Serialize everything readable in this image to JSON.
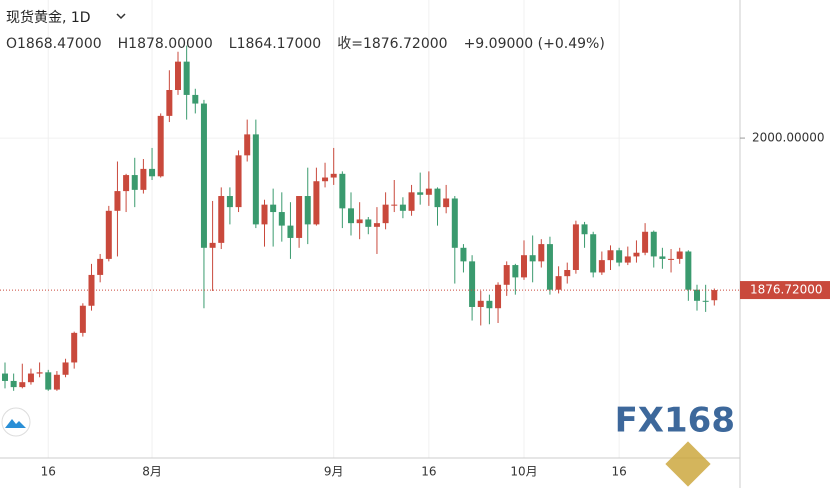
{
  "chart_data": {
    "type": "candlestick",
    "title": "现货黄金, 1D",
    "ohlc_legend": [
      "O1868.47000",
      "H1878.00000",
      "L1864.17000",
      "收=1876.72000",
      "+9.09000 (+0.49%)"
    ],
    "watermark": "FX168",
    "up_color": "#c9493c",
    "down_color": "#3a9a6e",
    "ylim": [
      1740.5,
      2112
    ],
    "yticks": [
      {
        "value": 2000,
        "label": "2000.00000"
      }
    ],
    "last_price": {
      "value": 1876.72,
      "label": "1876.72000"
    },
    "grid": true,
    "categories": [
      null,
      null,
      null,
      null,
      null,
      "16",
      null,
      null,
      null,
      null,
      null,
      null,
      null,
      null,
      null,
      null,
      null,
      "8月",
      null,
      null,
      null,
      null,
      null,
      null,
      null,
      null,
      null,
      null,
      null,
      null,
      null,
      null,
      null,
      null,
      null,
      null,
      null,
      null,
      "9月",
      null,
      null,
      null,
      null,
      null,
      null,
      null,
      null,
      null,
      null,
      "16",
      null,
      null,
      null,
      null,
      null,
      null,
      null,
      null,
      null,
      null,
      "10月",
      null,
      null,
      null,
      null,
      null,
      null,
      null,
      null,
      null,
      null,
      "16",
      null,
      null,
      null,
      null,
      null,
      null,
      null,
      null,
      null,
      null,
      null
    ],
    "series": [
      {
        "open": [
          1809,
          1803,
          1798,
          1802,
          1809,
          1810,
          1796,
          1808,
          1818,
          1842,
          1864,
          1889,
          1902,
          1941,
          1957,
          1970,
          1958,
          1975,
          1969,
          2018,
          2039,
          2062,
          2035,
          2028,
          1911,
          1915,
          1953,
          1944,
          1986,
          2003,
          1930,
          1946,
          1940,
          1929,
          1919,
          1953,
          1930,
          1965,
          1968,
          1971,
          1943,
          1931,
          1934,
          1928,
          1931,
          1946,
          1946,
          1941,
          1956,
          1954,
          1959,
          1944,
          1951,
          1911,
          1900,
          1863,
          1868,
          1862,
          1881,
          1897,
          1887,
          1905,
          1900,
          1914,
          1877,
          1888,
          1893,
          1930,
          1922,
          1891,
          1901,
          1909,
          1899,
          1904,
          1907,
          1924,
          1904,
          1902,
          1902,
          1908,
          1877,
          1868,
          1868.47
        ],
        "high": [
          1818,
          1809,
          1817,
          1813,
          1818,
          1812,
          1811,
          1821,
          1843,
          1866,
          1898,
          1906,
          1945,
          1981,
          1971,
          1984,
          1983,
          1992,
          2020,
          2055,
          2070,
          2075,
          2040,
          2031,
          1949,
          1960,
          1960,
          1990,
          2015,
          2015,
          1950,
          1959,
          1956,
          1948,
          1953,
          1976,
          1976,
          1980,
          1992,
          1973,
          1956,
          1948,
          1936,
          1944,
          1956,
          1966,
          1952,
          1962,
          1972,
          1973,
          1960,
          1962,
          1953,
          1914,
          1905,
          1876,
          1873,
          1883,
          1900,
          1898,
          1917,
          1921,
          1918,
          1920,
          1896,
          1899,
          1933,
          1932,
          1924,
          1908,
          1913,
          1911,
          1912,
          1917,
          1931,
          1925,
          1911,
          1910,
          1911,
          1909,
          1881,
          1881,
          1878
        ],
        "low": [
          1797,
          1795,
          1797,
          1800,
          1806,
          1795,
          1795,
          1806,
          1813,
          1839,
          1860,
          1883,
          1900,
          1904,
          1940,
          1944,
          1955,
          1966,
          1968,
          2013,
          2035,
          2015,
          2020,
          1862,
          1876,
          1910,
          1930,
          1940,
          1981,
          1927,
          1912,
          1912,
          1916,
          1902,
          1911,
          1914,
          1929,
          1960,
          1962,
          1927,
          1921,
          1918,
          1922,
          1906,
          1926,
          1940,
          1935,
          1937,
          1946,
          1945,
          1929,
          1939,
          1882,
          1891,
          1852,
          1848,
          1849,
          1850,
          1872,
          1873,
          1885,
          1883,
          1895,
          1873,
          1874,
          1882,
          1890,
          1911,
          1887,
          1889,
          1893,
          1896,
          1897,
          1899,
          1905,
          1895,
          1894,
          1891,
          1898,
          1868,
          1860,
          1859,
          1864.17
        ],
        "close": [
          1803,
          1798,
          1802,
          1809,
          1810,
          1796,
          1808,
          1818,
          1842,
          1864,
          1889,
          1902,
          1941,
          1957,
          1970,
          1958,
          1975,
          1969,
          2018,
          2039,
          2062,
          2035,
          2028,
          1911,
          1915,
          1953,
          1944,
          1986,
          2003,
          1930,
          1946,
          1940,
          1929,
          1919,
          1953,
          1930,
          1965,
          1968,
          1971,
          1943,
          1931,
          1934,
          1928,
          1931,
          1946,
          1946,
          1941,
          1956,
          1954,
          1959,
          1944,
          1951,
          1911,
          1900,
          1863,
          1868,
          1862,
          1881,
          1897,
          1887,
          1905,
          1900,
          1914,
          1877,
          1888,
          1893,
          1930,
          1922,
          1891,
          1901,
          1909,
          1899,
          1904,
          1907,
          1924,
          1904,
          1902,
          1902,
          1908,
          1877,
          1868,
          1867.63,
          1876.72
        ]
      }
    ]
  }
}
